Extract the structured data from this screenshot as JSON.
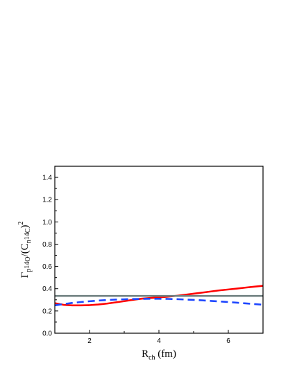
{
  "chart_data": {
    "type": "line",
    "title": "",
    "xlabel": {
      "main": "R",
      "sub": "ch",
      "rest": " (fm)"
    },
    "ylabel": {
      "gamma": "Γ",
      "p": "p",
      "sup14a": "14",
      "O": "O",
      "slash": "/(C",
      "n": "n",
      "sup14b": "14",
      "C": "C",
      "close": ")",
      "sq": "2"
    },
    "xlim": [
      1,
      7
    ],
    "ylim": [
      0.0,
      1.5
    ],
    "x_ticks": [
      2,
      4,
      6
    ],
    "x_tick_labels": [
      "2",
      "4",
      "6"
    ],
    "y_ticks": [
      0.0,
      0.2,
      0.4,
      0.6,
      0.8,
      1.0,
      1.2,
      1.4
    ],
    "y_tick_labels": [
      "0.0",
      "0.2",
      "0.4",
      "0.6",
      "0.8",
      "1.0",
      "1.2",
      "1.4"
    ],
    "grid": false,
    "legend": "none",
    "series": [
      {
        "style": "solid",
        "color": "#ff0000",
        "x": [
          1.0,
          1.25,
          1.5,
          1.75,
          2.0,
          2.25,
          2.5,
          2.75,
          3.0,
          3.25,
          3.5,
          3.75,
          4.0,
          4.25,
          4.5,
          4.75,
          5.0,
          5.25,
          5.5,
          5.75,
          6.0,
          6.25,
          6.5,
          6.75,
          7.0
        ],
        "y": [
          0.27,
          0.255,
          0.25,
          0.25,
          0.252,
          0.258,
          0.266,
          0.277,
          0.288,
          0.3,
          0.31,
          0.316,
          0.322,
          0.328,
          0.336,
          0.345,
          0.355,
          0.365,
          0.375,
          0.385,
          0.393,
          0.401,
          0.41,
          0.418,
          0.426
        ]
      },
      {
        "style": "dashed",
        "color": "#1e46ff",
        "x": [
          1.0,
          1.25,
          1.5,
          1.75,
          2.0,
          2.25,
          2.5,
          2.75,
          3.0,
          3.25,
          3.5,
          3.75,
          4.0,
          4.25,
          4.5,
          4.75,
          5.0,
          5.25,
          5.5,
          5.75,
          6.0,
          6.25,
          6.5,
          6.75,
          7.0
        ],
        "y": [
          0.25,
          0.262,
          0.272,
          0.28,
          0.287,
          0.293,
          0.298,
          0.302,
          0.305,
          0.307,
          0.308,
          0.309,
          0.309,
          0.308,
          0.306,
          0.303,
          0.299,
          0.295,
          0.29,
          0.285,
          0.28,
          0.274,
          0.268,
          0.262,
          0.256
        ]
      },
      {
        "style": "solid",
        "color": "#708080",
        "x": [
          1.0,
          7.0
        ],
        "y": [
          0.335,
          0.335
        ]
      }
    ]
  }
}
